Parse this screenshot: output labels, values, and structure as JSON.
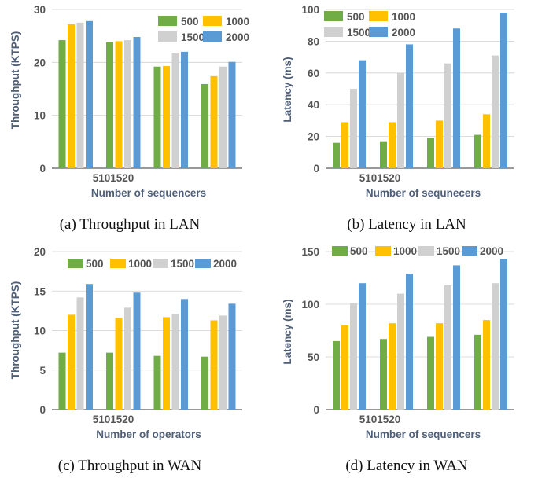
{
  "colors": {
    "series": [
      "#70ad47",
      "#ffc000",
      "#d0d0d0",
      "#5b9bd5"
    ]
  },
  "chart_data": [
    {
      "type": "bar",
      "caption": "(a) Throughput in LAN",
      "ylabel": "Throughput (KTPS)",
      "xlabel": "Number of sequencers",
      "x_tick_text": "5101520",
      "categories": [
        "5",
        "10",
        "15",
        "20"
      ],
      "ylim": [
        0,
        30
      ],
      "yticks": [
        0,
        10,
        20,
        30
      ],
      "grid": true,
      "legend": "top-right",
      "series": [
        {
          "name": "500",
          "values": [
            24.2,
            23.8,
            19.2,
            15.9
          ]
        },
        {
          "name": "1000",
          "values": [
            27.2,
            24.0,
            19.3,
            17.4
          ]
        },
        {
          "name": "1500",
          "values": [
            27.5,
            24.2,
            21.8,
            19.2
          ]
        },
        {
          "name": "2000",
          "values": [
            27.8,
            24.8,
            22.0,
            20.1
          ]
        }
      ]
    },
    {
      "type": "bar",
      "caption": "(b) Latency in LAN",
      "ylabel": "Latency (ms)",
      "xlabel": "Number of sequnecers",
      "x_tick_text": "5101520",
      "categories": [
        "5",
        "10",
        "15",
        "20"
      ],
      "ylim": [
        0,
        100
      ],
      "yticks": [
        0,
        20,
        40,
        60,
        80,
        100
      ],
      "grid": true,
      "legend": "top-left",
      "series": [
        {
          "name": "500",
          "values": [
            16,
            17,
            19,
            21
          ]
        },
        {
          "name": "1000",
          "values": [
            29,
            29,
            30,
            34
          ]
        },
        {
          "name": "1500",
          "values": [
            50,
            60,
            66,
            71
          ]
        },
        {
          "name": "2000",
          "values": [
            68,
            78,
            88,
            98
          ]
        }
      ]
    },
    {
      "type": "bar",
      "caption": "(c) Throughput in WAN",
      "ylabel": "Throughput (KTPS)",
      "xlabel": "Number of operators",
      "x_tick_text": "5101520",
      "categories": [
        "5",
        "10",
        "15",
        "20"
      ],
      "ylim": [
        0,
        20
      ],
      "yticks": [
        0,
        5,
        10,
        15,
        20
      ],
      "grid": true,
      "legend": "top",
      "series": [
        {
          "name": "500",
          "values": [
            7.2,
            7.2,
            6.8,
            6.7
          ]
        },
        {
          "name": "1000",
          "values": [
            12.0,
            11.6,
            11.7,
            11.3
          ]
        },
        {
          "name": "1500",
          "values": [
            14.2,
            12.9,
            12.1,
            11.9
          ]
        },
        {
          "name": "2000",
          "values": [
            15.9,
            14.8,
            14.0,
            13.4
          ]
        }
      ]
    },
    {
      "type": "bar",
      "caption": "(d) Latency in WAN",
      "ylabel": "Latency (ms)",
      "xlabel": "Number of sequencers",
      "x_tick_text": "5101520",
      "categories": [
        "5",
        "10",
        "15",
        "20"
      ],
      "ylim": [
        0,
        150
      ],
      "yticks": [
        0,
        50,
        100,
        150
      ],
      "grid": true,
      "legend": "top",
      "series": [
        {
          "name": "500",
          "values": [
            65,
            67,
            69,
            71
          ]
        },
        {
          "name": "1000",
          "values": [
            80,
            82,
            82,
            85
          ]
        },
        {
          "name": "1500",
          "values": [
            101,
            110,
            118,
            120
          ]
        },
        {
          "name": "2000",
          "values": [
            120,
            129,
            137,
            143
          ]
        }
      ]
    }
  ]
}
